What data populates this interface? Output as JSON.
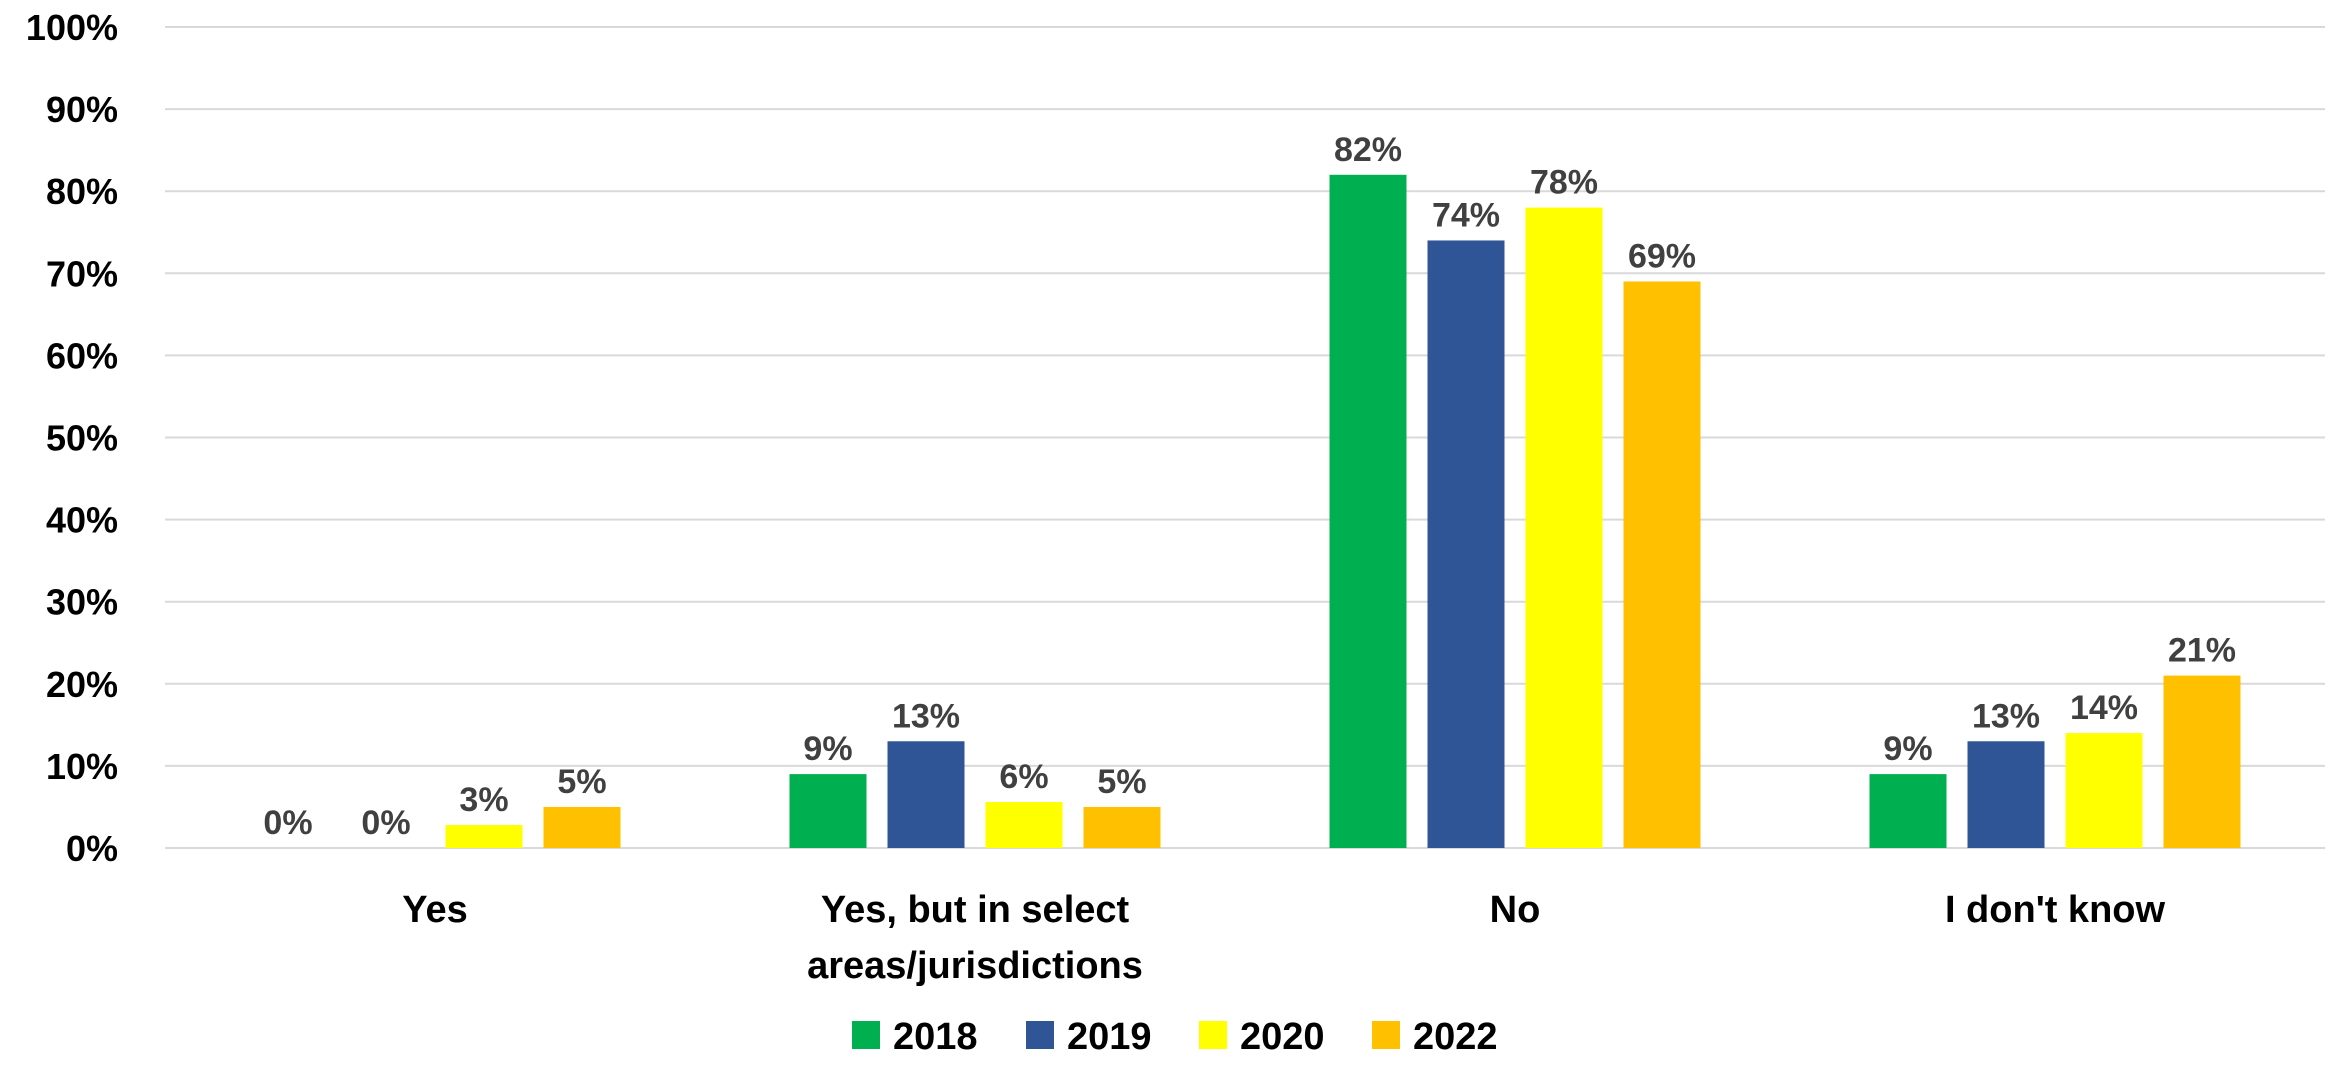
{
  "chart_data": {
    "type": "bar",
    "categories": [
      [
        "Yes"
      ],
      [
        "Yes, but in select",
        "areas/jurisdictions"
      ],
      [
        "No"
      ],
      [
        "I don't know"
      ]
    ],
    "series": [
      {
        "name": "2018",
        "color": "#00B050",
        "values": [
          0,
          9,
          82,
          9
        ],
        "labels": [
          "0%",
          "9%",
          "82%",
          "9%"
        ]
      },
      {
        "name": "2019",
        "color": "#2F5597",
        "values": [
          0,
          13,
          74,
          13
        ],
        "labels": [
          "0%",
          "13%",
          "74%",
          "13%"
        ]
      },
      {
        "name": "2020",
        "color": "#FFFF00",
        "values": [
          2.8,
          5.6,
          78,
          14
        ],
        "labels": [
          "3%",
          "6%",
          "78%",
          "14%"
        ]
      },
      {
        "name": "2022",
        "color": "#FFC000",
        "values": [
          5,
          5,
          69,
          21
        ],
        "labels": [
          "5%",
          "5%",
          "69%",
          "21%"
        ]
      }
    ],
    "yticks": [
      "0%",
      "10%",
      "20%",
      "30%",
      "40%",
      "50%",
      "60%",
      "70%",
      "80%",
      "90%",
      "100%"
    ],
    "ylim": [
      0,
      100
    ],
    "grid": true,
    "legend_position": "bottom",
    "gridline_color": "#D9D9D9"
  }
}
